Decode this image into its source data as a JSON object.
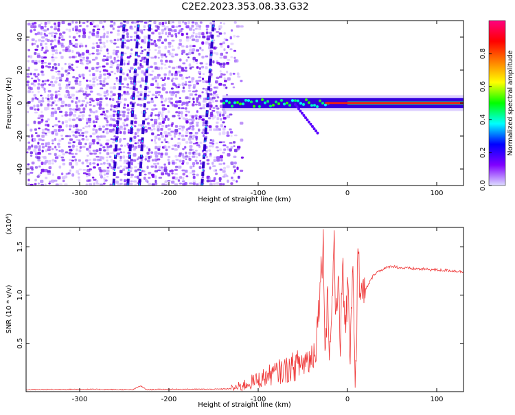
{
  "figure_title": "C2E2.2023.353.08.33.G32",
  "chart_data": [
    {
      "type": "heatmap",
      "title": "C2E2.2023.353.08.33.G32",
      "xlabel": "Height of straight line (km)",
      "ylabel": "Frequency (Hz)",
      "xlim": [
        -360,
        130
      ],
      "ylim": [
        -50,
        50
      ],
      "x_ticks": [
        -300,
        -200,
        -100,
        0,
        100
      ],
      "y_ticks": [
        -40,
        -20,
        0,
        20,
        40
      ],
      "colorbar": {
        "label": "Normalized spectral amplitude",
        "range": [
          0.0,
          1.0
        ],
        "ticks": [
          0.0,
          0.2,
          0.4,
          0.6,
          0.8
        ],
        "colormap": "rainbow",
        "colors": [
          "#ddddff",
          "#8000ff",
          "#0000ff",
          "#00ffff",
          "#00ff00",
          "#ffff00",
          "#ff8000",
          "#ff0000",
          "#ff0080"
        ]
      },
      "features": {
        "noise_region_x": [
          -360,
          -128
        ],
        "noise_color": "#7a2cf0",
        "tone_band": {
          "x": [
            -140,
            130
          ],
          "center_hz": 0,
          "halfwidth_hz": 3
        },
        "signal_tracks": [
          {
            "x": [
              -262,
              -250
            ],
            "y": [
              -50,
              50
            ]
          },
          {
            "x": [
              -246,
              -234
            ],
            "y": [
              -50,
              50
            ]
          },
          {
            "x": [
              -233,
              -221
            ],
            "y": [
              -50,
              50
            ]
          },
          {
            "x": [
              -163,
              -150
            ],
            "y": [
              -50,
              50
            ]
          }
        ]
      }
    },
    {
      "type": "line",
      "xlabel": "Height of straight line (km)",
      "ylabel": "SNR (10 * v/v)",
      "y_multiplier": "(x10⁴)",
      "xlim": [
        -360,
        130
      ],
      "ylim": [
        0,
        1.7
      ],
      "x_ticks": [
        -300,
        -200,
        -100,
        0,
        100
      ],
      "y_ticks": [
        0.5,
        1.0,
        1.5
      ],
      "line_color": "#ee3333",
      "series": [
        {
          "x": [
            -360,
            -300,
            -240,
            -232,
            -225,
            -200,
            -150,
            -130,
            -120,
            -110,
            -100,
            -90,
            -80,
            -70,
            -60,
            -50,
            -40,
            -35,
            -30,
            -27,
            -25,
            -22,
            -20,
            -17,
            -15,
            -13,
            -10,
            -8,
            -5,
            -3,
            0,
            3,
            6,
            9,
            12,
            15,
            20,
            30,
            40,
            50,
            60,
            80,
            100,
            120,
            130
          ],
          "values": [
            0.02,
            0.025,
            0.02,
            0.06,
            0.02,
            0.025,
            0.025,
            0.03,
            0.05,
            0.09,
            0.12,
            0.16,
            0.2,
            0.22,
            0.26,
            0.3,
            0.36,
            0.5,
            1.2,
            1.52,
            0.45,
            1.05,
            0.35,
            0.95,
            1.72,
            0.6,
            1.3,
            0.55,
            1.2,
            0.7,
            0.95,
            0.5,
            1.35,
            0.03,
            1.52,
            0.9,
            1.05,
            1.22,
            1.27,
            1.3,
            1.28,
            1.27,
            1.26,
            1.25,
            1.24
          ]
        }
      ]
    }
  ]
}
